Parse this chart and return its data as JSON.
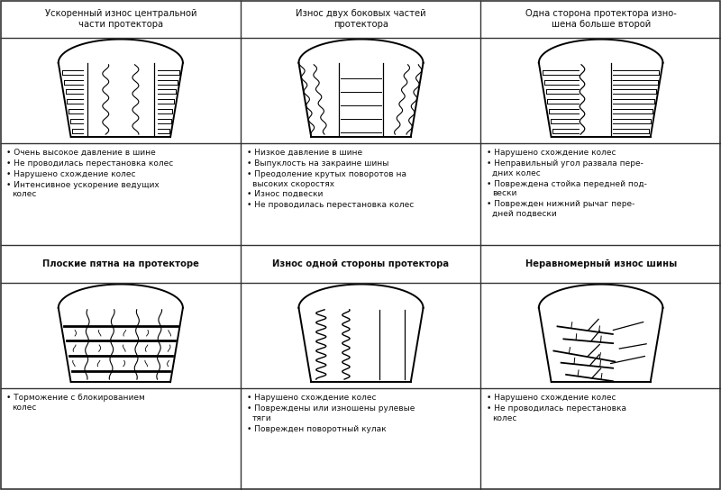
{
  "headers": [
    "Ускоренный износ центральной\nчасти протектора",
    "Износ двух боковых частей\nпротектора",
    "Одна сторона протектора изно-\nшена больше второй",
    "Плоские пятна на протекторе",
    "Износ одной стороны протектора",
    "Неравномерный износ шины"
  ],
  "bullets": [
    [
      "Очень высокое давление в шине",
      "Не проводилась перестановка колес",
      "Нарушено схождение колес",
      "Интенсивное ускорение ведущих\nколес"
    ],
    [
      "Низкое давление в шине",
      "Выпуклость на закраине шины",
      "Преодоление крутых поворотов на\nвысоких скоростях",
      "Износ подвески",
      "Не проводилась перестановка колес"
    ],
    [
      "Нарушено схождение колес",
      "Неправильный угол развала пере-\nдних колес",
      "Повреждена стойка передней под-\nвески",
      "Поврежден нижний рычаг пере-\nдней подвески"
    ],
    [
      "Торможение с блокированием\nколес"
    ],
    [
      "Нарушено схождение колес",
      "Повреждены или изношены рулевые\nтяги",
      "Поврежден поворотный кулак"
    ],
    [
      "Нарушено схождение колес",
      "Не проводилась перестановка\nколес"
    ]
  ]
}
